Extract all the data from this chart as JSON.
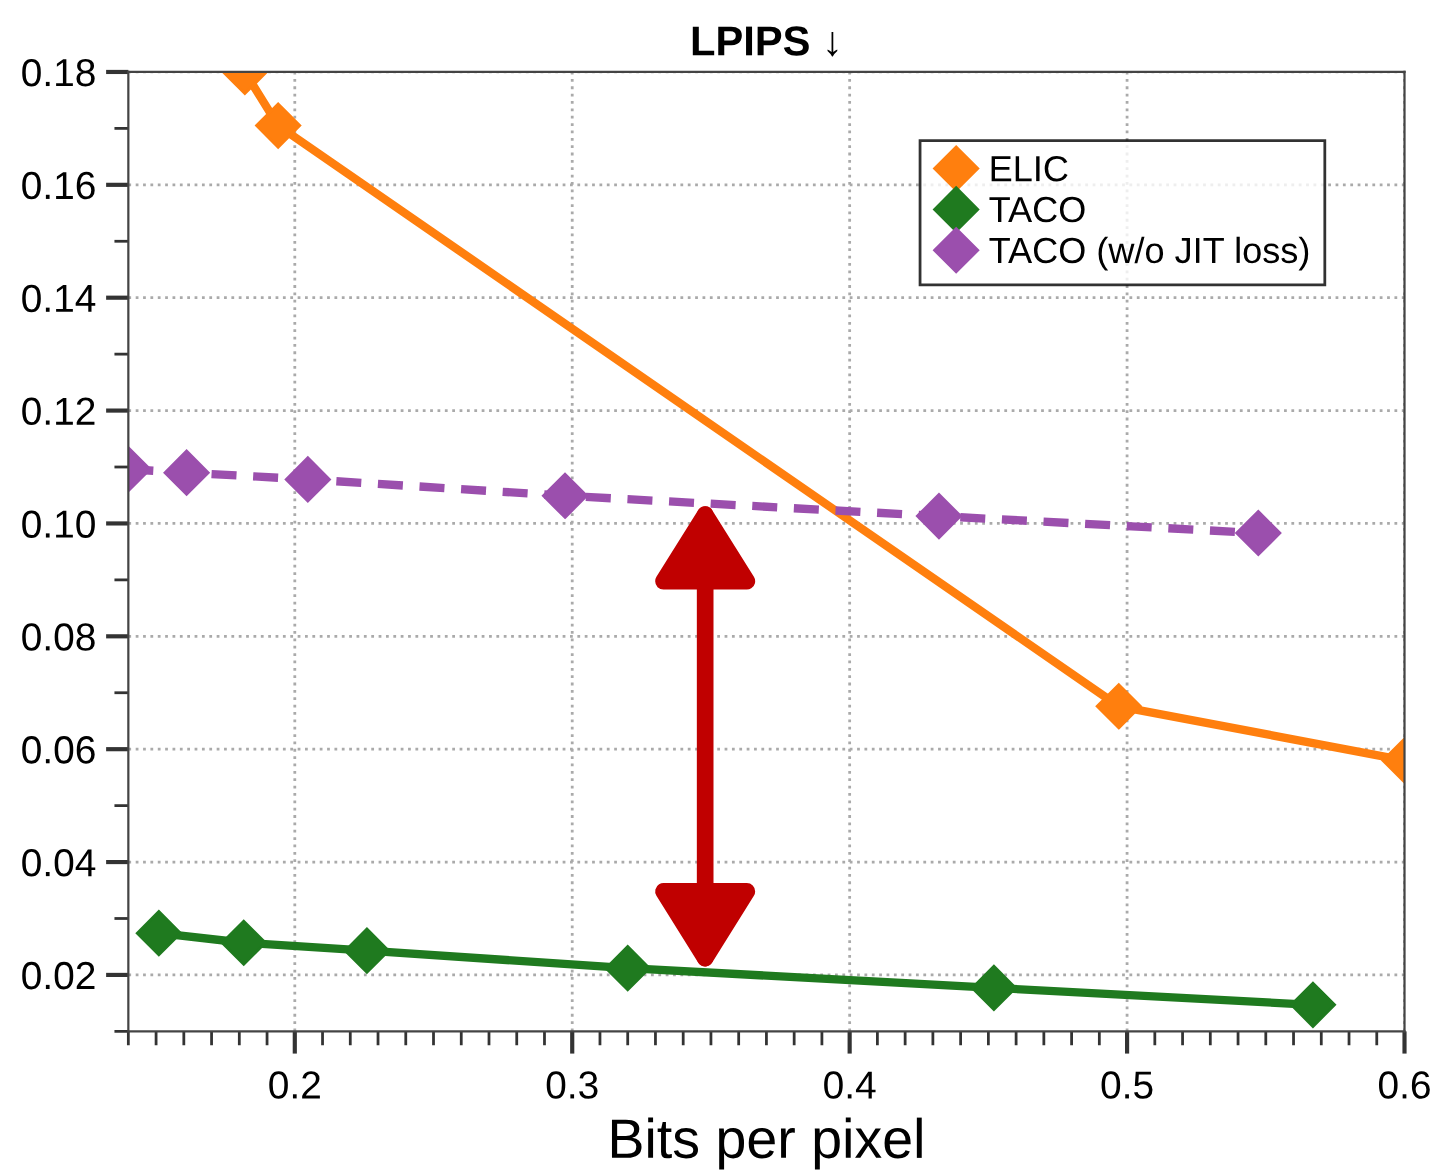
{
  "chart_data": {
    "type": "line",
    "title": "LPIPS ↓",
    "xlabel": "Bits per pixel",
    "series": [
      {
        "name": "ELIC",
        "color": "#ff7f0e",
        "x": [
          0.182,
          0.194,
          0.497,
          0.6
        ],
        "values": [
          0.18,
          0.1705,
          0.0676,
          0.058
        ],
        "line_style": "solid"
      },
      {
        "name": "TACO",
        "color": "#1f7a1f",
        "x": [
          0.151,
          0.1816,
          0.226,
          0.32,
          0.452,
          0.567
        ],
        "values": [
          0.0274,
          0.0257,
          0.0243,
          0.0212,
          0.0177,
          0.0147
        ],
        "line_style": "solid"
      },
      {
        "name": "TACO (w/o JIT loss)",
        "color": "#9b4fad",
        "x": [
          0.14,
          0.161,
          0.2047,
          0.2974,
          0.4322,
          0.5473
        ],
        "values": [
          0.1096,
          0.109,
          0.1078,
          0.1049,
          0.1013,
          0.0983
        ],
        "line_style": "dashed"
      }
    ],
    "xlim": [
      0.14,
      0.6
    ],
    "xticks": [
      0.2,
      0.3,
      0.4,
      0.5,
      0.6
    ],
    "ylim": [
      0.01,
      0.18
    ],
    "yticks": [
      0.02,
      0.04,
      0.06,
      0.08,
      {
        "value": 0.1,
        "label": "0.10"
      },
      0.12,
      0.14,
      0.16,
      0.18
    ],
    "grid": true,
    "legend": "top right",
    "marker": "diamond"
  }
}
